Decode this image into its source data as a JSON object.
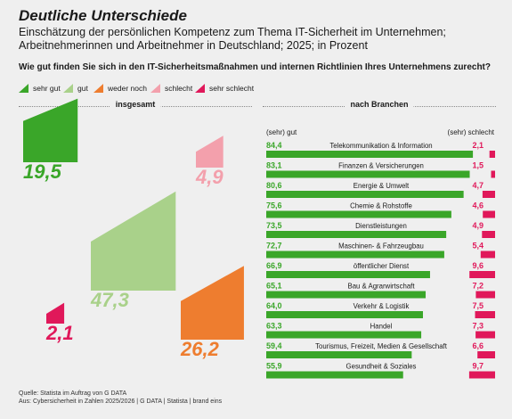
{
  "header": {
    "title": "Deutliche Unterschiede",
    "subtitle": "Einschätzung der persönlichen Kompetenz zum Thema IT-Sicherheit im Unternehmen; Arbeitnehmerinnen und Arbeitnehmer in Deutschland; 2025; in Prozent",
    "question": "Wie gut finden Sie sich in den IT-Sicherheitsmaßnahmen und internen Richtlinien Ihres Unternehmens zurecht?"
  },
  "legend": [
    {
      "label": "sehr gut",
      "color": "#3aa629"
    },
    {
      "label": "gut",
      "color": "#a9d18a"
    },
    {
      "label": "weder noch",
      "color": "#ee7d2f"
    },
    {
      "label": "schlecht",
      "color": "#f3a0ac"
    },
    {
      "label": "sehr schlecht",
      "color": "#e0185a"
    }
  ],
  "sections": {
    "left": "insgesamt",
    "right": "nach Branchen"
  },
  "chart_data": [
    {
      "type": "pie",
      "title": "insgesamt",
      "categories": [
        "sehr gut",
        "gut",
        "weder noch",
        "schlecht",
        "sehr schlecht"
      ],
      "values": [
        19.5,
        47.3,
        26.2,
        4.9,
        2.1
      ],
      "labels": [
        "19,5",
        "47,3",
        "26,2",
        "4,9",
        "2,1"
      ],
      "colors": [
        "#3aa629",
        "#a9d18a",
        "#ee7d2f",
        "#f3a0ac",
        "#e0185a"
      ]
    },
    {
      "type": "bar",
      "title": "nach Branchen",
      "left_header": "(sehr) gut",
      "right_header": "(sehr) schlecht",
      "categories": [
        "Telekommunikation & Information",
        "Finanzen & Versicherungen",
        "Energie & Umwelt",
        "Chemie & Rohstoffe",
        "Dienstleistungen",
        "Maschinen- & Fahrzeugbau",
        "öffentlicher Dienst",
        "Bau & Agrarwirtschaft",
        "Verkehr & Logistik",
        "Handel",
        "Tourismus, Freizeit, Medien & Gesellschaft",
        "Gesundheit & Soziales"
      ],
      "series": [
        {
          "name": "(sehr) gut",
          "values": [
            84.4,
            83.1,
            80.6,
            75.6,
            73.5,
            72.7,
            66.9,
            65.1,
            64.0,
            63.3,
            59.4,
            55.9
          ],
          "labels": [
            "84,4",
            "83,1",
            "80,6",
            "75,6",
            "73,5",
            "72,7",
            "66,9",
            "65,1",
            "64,0",
            "63,3",
            "59,4",
            "55,9"
          ],
          "color": "#3aa629"
        },
        {
          "name": "(sehr) schlecht",
          "values": [
            2.1,
            1.5,
            4.7,
            4.6,
            4.9,
            5.4,
            9.6,
            7.2,
            7.5,
            7.3,
            6.6,
            9.7
          ],
          "labels": [
            "2,1",
            "1,5",
            "4,7",
            "4,6",
            "4,9",
            "5,4",
            "9,6",
            "7,2",
            "7,5",
            "7,3",
            "6,6",
            "9,7"
          ],
          "color": "#e0185a"
        }
      ]
    }
  ],
  "source": {
    "line1": "Quelle: Statista im Auftrag von G DATA",
    "line2": "Aus: Cybersicherheit in Zahlen 2025/2026 | G DATA | Statista | brand eins"
  }
}
